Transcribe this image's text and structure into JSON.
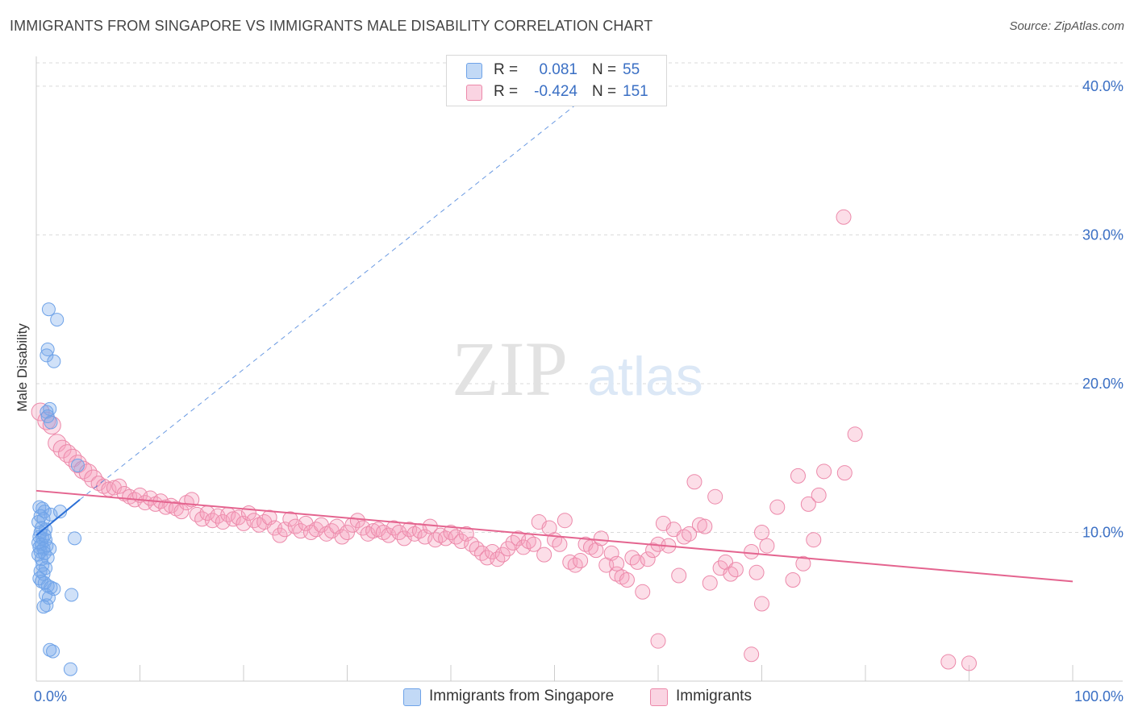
{
  "title": "IMMIGRANTS FROM SINGAPORE VS IMMIGRANTS MALE DISABILITY CORRELATION CHART",
  "source": "Source: ZipAtlas.com",
  "watermark": {
    "zip": "ZIP",
    "atlas": "atlas"
  },
  "colors": {
    "blue": "#6fa3e8",
    "blue_fill": "rgba(120,170,235,0.35)",
    "blue_line": "#2b6fd6",
    "pink": "#ec89aa",
    "pink_fill": "rgba(245,160,190,0.35)",
    "pink_line": "#e4648f",
    "grid": "#d9d9d9",
    "tick_text": "#3a6fc4"
  },
  "legend": {
    "rows": [
      {
        "r_label": "R =",
        "r_value": "0.081",
        "n_label": "N =",
        "n_value": "55",
        "color": "#6fa3e8"
      },
      {
        "r_label": "R =",
        "r_value": "-0.424",
        "n_label": "N =",
        "n_value": "151",
        "color": "#ec89aa"
      }
    ]
  },
  "bottom_legend": [
    {
      "label": "Immigrants from Singapore",
      "color": "#6fa3e8"
    },
    {
      "label": "Immigrants",
      "color": "#ec89aa"
    }
  ],
  "chart_data": {
    "type": "scatter",
    "title": "IMMIGRANTS FROM SINGAPORE VS IMMIGRANTS MALE DISABILITY CORRELATION CHART",
    "xlabel": "",
    "ylabel": "Male Disability",
    "xlim": [
      0,
      100
    ],
    "ylim": [
      0,
      42
    ],
    "x_tick_labels": [
      {
        "value": 0,
        "label": "0.0%"
      },
      {
        "value": 100,
        "label": "100.0%"
      }
    ],
    "y_tick_labels": [
      {
        "value": 10,
        "label": "10.0%"
      },
      {
        "value": 20,
        "label": "20.0%"
      },
      {
        "value": 30,
        "label": "30.0%"
      },
      {
        "value": 40,
        "label": "40.0%"
      }
    ],
    "grid": true,
    "legend_position": "top-center",
    "series": [
      {
        "name": "Immigrants from Singapore",
        "color": "#6fa3e8",
        "points": [
          [
            1.2,
            25.0
          ],
          [
            2.0,
            24.3
          ],
          [
            1.1,
            22.3
          ],
          [
            1.0,
            21.9
          ],
          [
            1.7,
            21.5
          ],
          [
            1.3,
            18.3
          ],
          [
            1.0,
            18.1
          ],
          [
            1.1,
            17.8
          ],
          [
            1.4,
            17.4
          ],
          [
            4.0,
            14.5
          ],
          [
            0.3,
            11.7
          ],
          [
            0.6,
            11.6
          ],
          [
            0.8,
            11.4
          ],
          [
            1.4,
            11.2
          ],
          [
            2.3,
            11.4
          ],
          [
            0.4,
            11.1
          ],
          [
            0.7,
            10.9
          ],
          [
            0.2,
            10.7
          ],
          [
            0.5,
            10.3
          ],
          [
            0.9,
            10.2
          ],
          [
            0.3,
            9.7
          ],
          [
            0.6,
            9.6
          ],
          [
            0.9,
            9.5
          ],
          [
            0.2,
            9.3
          ],
          [
            0.5,
            9.2
          ],
          [
            1.0,
            9.1
          ],
          [
            0.3,
            9.0
          ],
          [
            0.7,
            8.9
          ],
          [
            1.3,
            8.9
          ],
          [
            0.4,
            8.7
          ],
          [
            0.8,
            8.6
          ],
          [
            0.2,
            8.5
          ],
          [
            1.1,
            8.3
          ],
          [
            0.5,
            8.2
          ],
          [
            3.7,
            9.6
          ],
          [
            0.6,
            7.8
          ],
          [
            0.9,
            7.6
          ],
          [
            0.4,
            7.4
          ],
          [
            0.7,
            7.2
          ],
          [
            0.3,
            6.9
          ],
          [
            0.5,
            6.7
          ],
          [
            0.8,
            6.6
          ],
          [
            1.1,
            6.4
          ],
          [
            1.4,
            6.3
          ],
          [
            1.7,
            6.2
          ],
          [
            0.9,
            5.8
          ],
          [
            1.2,
            5.6
          ],
          [
            3.4,
            5.8
          ],
          [
            1.0,
            5.1
          ],
          [
            0.7,
            5.0
          ],
          [
            1.3,
            2.1
          ],
          [
            1.6,
            2.0
          ],
          [
            3.3,
            0.8
          ],
          [
            0.4,
            10.0
          ],
          [
            0.8,
            9.8
          ]
        ]
      },
      {
        "name": "Immigrants",
        "color": "#ec89aa",
        "points": [
          [
            0.4,
            18.1
          ],
          [
            1.0,
            17.5
          ],
          [
            1.5,
            17.2
          ],
          [
            2.0,
            16.0
          ],
          [
            2.5,
            15.6
          ],
          [
            3.0,
            15.3
          ],
          [
            3.5,
            15.0
          ],
          [
            4.0,
            14.6
          ],
          [
            4.5,
            14.2
          ],
          [
            5.0,
            14.0
          ],
          [
            5.5,
            13.6
          ],
          [
            6.0,
            13.3
          ],
          [
            6.5,
            13.1
          ],
          [
            7.0,
            12.9
          ],
          [
            7.5,
            13.0
          ],
          [
            8.0,
            13.1
          ],
          [
            8.5,
            12.6
          ],
          [
            9.0,
            12.4
          ],
          [
            9.5,
            12.2
          ],
          [
            10.0,
            12.5
          ],
          [
            10.5,
            12.0
          ],
          [
            11.0,
            12.3
          ],
          [
            11.5,
            11.9
          ],
          [
            12.0,
            12.1
          ],
          [
            12.5,
            11.7
          ],
          [
            13.0,
            11.8
          ],
          [
            13.5,
            11.6
          ],
          [
            14.0,
            11.4
          ],
          [
            14.5,
            12.0
          ],
          [
            15.0,
            12.2
          ],
          [
            15.5,
            11.2
          ],
          [
            16.0,
            10.9
          ],
          [
            16.5,
            11.3
          ],
          [
            17.0,
            10.8
          ],
          [
            17.5,
            11.1
          ],
          [
            18.0,
            10.7
          ],
          [
            18.5,
            11.2
          ],
          [
            19.0,
            10.9
          ],
          [
            19.5,
            11.0
          ],
          [
            20.0,
            10.6
          ],
          [
            20.5,
            11.3
          ],
          [
            21.0,
            10.8
          ],
          [
            21.5,
            10.5
          ],
          [
            22.0,
            10.7
          ],
          [
            22.5,
            11.0
          ],
          [
            23.0,
            10.3
          ],
          [
            23.5,
            9.8
          ],
          [
            24.0,
            10.2
          ],
          [
            24.5,
            10.9
          ],
          [
            25.0,
            10.4
          ],
          [
            25.5,
            10.1
          ],
          [
            26.0,
            10.6
          ],
          [
            26.5,
            10.0
          ],
          [
            27.0,
            10.2
          ],
          [
            27.5,
            10.5
          ],
          [
            28.0,
            9.9
          ],
          [
            28.5,
            10.1
          ],
          [
            29.0,
            10.4
          ],
          [
            29.5,
            9.7
          ],
          [
            30.0,
            10.0
          ],
          [
            30.5,
            10.5
          ],
          [
            31.0,
            10.8
          ],
          [
            31.5,
            10.3
          ],
          [
            32.0,
            9.9
          ],
          [
            32.5,
            10.1
          ],
          [
            33.0,
            10.2
          ],
          [
            33.5,
            10.0
          ],
          [
            34.0,
            9.8
          ],
          [
            34.5,
            10.3
          ],
          [
            35.0,
            10.0
          ],
          [
            35.5,
            9.6
          ],
          [
            36.0,
            10.2
          ],
          [
            36.5,
            9.9
          ],
          [
            37.0,
            10.1
          ],
          [
            37.5,
            9.7
          ],
          [
            38.0,
            10.4
          ],
          [
            38.5,
            9.5
          ],
          [
            39.0,
            9.8
          ],
          [
            39.5,
            9.6
          ],
          [
            40.0,
            10.0
          ],
          [
            40.5,
            9.7
          ],
          [
            41.0,
            9.4
          ],
          [
            41.5,
            9.9
          ],
          [
            42.0,
            9.2
          ],
          [
            42.5,
            8.9
          ],
          [
            43.0,
            8.6
          ],
          [
            43.5,
            8.3
          ],
          [
            44.0,
            8.7
          ],
          [
            44.5,
            8.2
          ],
          [
            45.0,
            8.5
          ],
          [
            45.5,
            8.9
          ],
          [
            46.0,
            9.3
          ],
          [
            46.5,
            9.6
          ],
          [
            47.0,
            9.0
          ],
          [
            47.5,
            9.4
          ],
          [
            48.0,
            9.2
          ],
          [
            48.5,
            10.7
          ],
          [
            49.0,
            8.5
          ],
          [
            49.5,
            10.3
          ],
          [
            50.0,
            9.5
          ],
          [
            50.5,
            9.2
          ],
          [
            51.0,
            10.8
          ],
          [
            51.5,
            8.0
          ],
          [
            52.0,
            7.8
          ],
          [
            52.5,
            8.1
          ],
          [
            53.0,
            9.2
          ],
          [
            53.5,
            9.0
          ],
          [
            54.0,
            8.8
          ],
          [
            54.5,
            9.6
          ],
          [
            55.0,
            7.8
          ],
          [
            55.5,
            8.6
          ],
          [
            56.0,
            7.2
          ],
          [
            56.5,
            7.0
          ],
          [
            57.0,
            6.8
          ],
          [
            57.5,
            8.3
          ],
          [
            58.0,
            8.0
          ],
          [
            58.5,
            6.0
          ],
          [
            59.0,
            8.2
          ],
          [
            59.5,
            8.8
          ],
          [
            60.0,
            9.2
          ],
          [
            60.5,
            10.6
          ],
          [
            61.0,
            9.1
          ],
          [
            61.5,
            10.2
          ],
          [
            62.0,
            7.1
          ],
          [
            62.5,
            9.7
          ],
          [
            63.0,
            9.9
          ],
          [
            63.5,
            13.4
          ],
          [
            64.0,
            10.5
          ],
          [
            64.5,
            10.4
          ],
          [
            65.0,
            6.6
          ],
          [
            65.5,
            12.4
          ],
          [
            66.0,
            7.6
          ],
          [
            66.5,
            8.0
          ],
          [
            67.0,
            7.2
          ],
          [
            67.5,
            7.5
          ],
          [
            69.0,
            8.7
          ],
          [
            69.5,
            7.3
          ],
          [
            70.0,
            5.2
          ],
          [
            70.5,
            9.1
          ],
          [
            71.5,
            11.7
          ],
          [
            73.0,
            6.8
          ],
          [
            73.5,
            13.8
          ],
          [
            74.0,
            7.9
          ],
          [
            74.5,
            11.9
          ],
          [
            75.0,
            9.5
          ],
          [
            75.5,
            12.5
          ],
          [
            76.0,
            14.1
          ],
          [
            78.0,
            14.0
          ],
          [
            79.0,
            16.6
          ],
          [
            77.9,
            31.2
          ],
          [
            60.0,
            2.7
          ],
          [
            69.0,
            1.8
          ],
          [
            88.0,
            1.3
          ],
          [
            90.0,
            1.2
          ],
          [
            70.0,
            10.0
          ],
          [
            56.0,
            7.9
          ]
        ]
      }
    ],
    "trend_lines": [
      {
        "series": "Immigrants from Singapore",
        "x": [
          0,
          4.2
        ],
        "y": [
          9.8,
          12.2
        ],
        "extended_to": [
          57,
          41.5
        ]
      },
      {
        "series": "Immigrants",
        "x": [
          0,
          100
        ],
        "y": [
          12.8,
          6.7
        ]
      }
    ]
  }
}
